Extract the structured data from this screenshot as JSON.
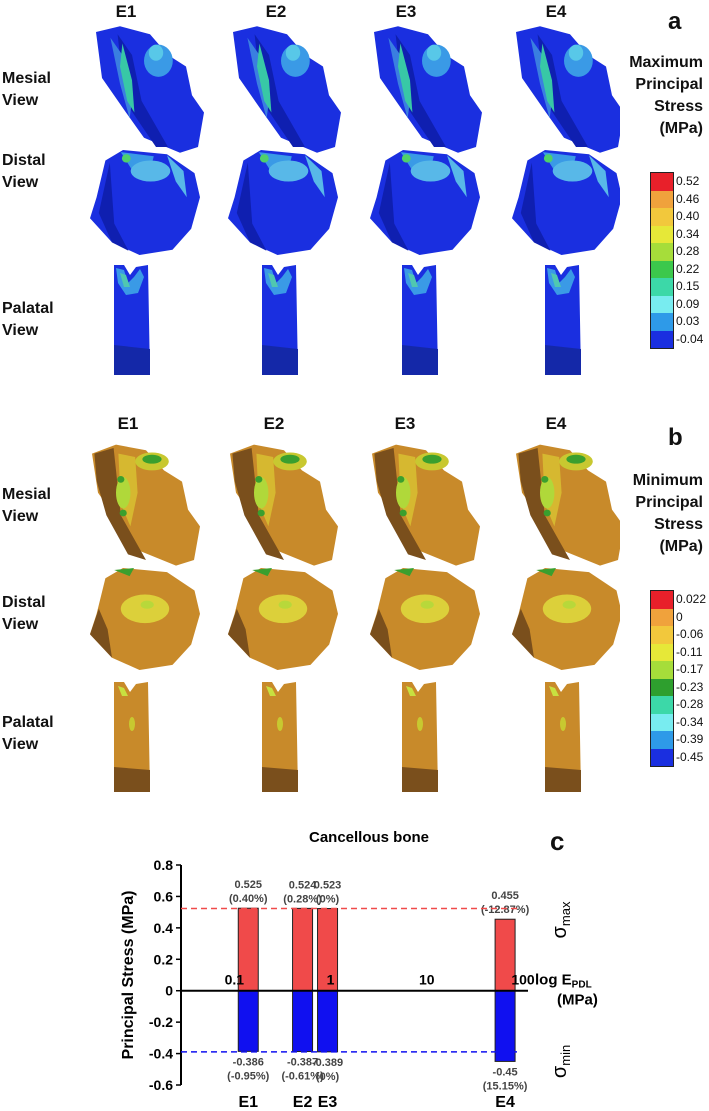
{
  "panel_a": {
    "letter": "a",
    "columns": [
      "E1",
      "E2",
      "E3",
      "E4"
    ],
    "rows": [
      {
        "line1": "Mesial",
        "line2": "View"
      },
      {
        "line1": "Distal",
        "line2": "View"
      },
      {
        "line1": "Palatal",
        "line2": "View"
      }
    ],
    "legend": {
      "title_lines": [
        "Maximum",
        "Principal",
        "Stress",
        "(MPa)"
      ],
      "ticks": [
        "0.52",
        "0.46",
        "0.40",
        "0.34",
        "0.28",
        "0.22",
        "0.15",
        "0.09",
        "0.03",
        "-0.04"
      ],
      "colors": [
        "#e8202a",
        "#f0a23c",
        "#f2c83c",
        "#e6e838",
        "#a6dd3a",
        "#3cc84c",
        "#3cd8a8",
        "#78ecf0",
        "#2e9ae8",
        "#1a2fe0"
      ]
    }
  },
  "panel_b": {
    "letter": "b",
    "columns": [
      "E1",
      "E2",
      "E3",
      "E4"
    ],
    "rows": [
      {
        "line1": "Mesial",
        "line2": "View"
      },
      {
        "line1": "Distal",
        "line2": "View"
      },
      {
        "line1": "Palatal",
        "line2": "View"
      }
    ],
    "legend": {
      "title_lines": [
        "Minimum",
        "Principal",
        "Stress",
        "(MPa)"
      ],
      "ticks": [
        "0.022",
        "0",
        "-0.06",
        "-0.11",
        "-0.17",
        "-0.23",
        "-0.28",
        "-0.34",
        "-0.39",
        "-0.45"
      ],
      "colors": [
        "#e8202a",
        "#f0a23c",
        "#f2c83c",
        "#e6e838",
        "#a6dd3a",
        "#2e9f2e",
        "#3cd8a8",
        "#78ecf0",
        "#2e9ae8",
        "#1a2fe0"
      ]
    }
  },
  "panel_c": {
    "letter": "c",
    "chart_data": {
      "type": "bar",
      "title": "Cancellous bone",
      "ylabel": "Principal Stress (MPa)",
      "ylim": [
        -0.6,
        0.8
      ],
      "yticks": [
        "0.8",
        "0.6",
        "0.4",
        "0.2",
        "0",
        "-0.2",
        "-0.4",
        "-0.6"
      ],
      "xlabel_main": "log E",
      "xlabel_sub": "PDL",
      "xlabel_unit": "(MPa)",
      "xscale": "log",
      "xlim": [
        0.03,
        100
      ],
      "xticks": [
        "0.1",
        "1",
        "10",
        "100"
      ],
      "categories": [
        "E1",
        "E2",
        "E3",
        "E4"
      ],
      "x": [
        0.15,
        0.55,
        1.0,
        70
      ],
      "series": [
        {
          "values": [
            0.525,
            0.524,
            0.523,
            0.455
          ],
          "color": "#f04a4a"
        },
        {
          "values": [
            -0.386,
            -0.387,
            -0.389,
            -0.45
          ],
          "color": "#1010f0"
        }
      ],
      "max_labels": [
        {
          "value": "0.525",
          "pct": "(0.40%)"
        },
        {
          "value": "0.524",
          "pct": "(0.28%)"
        },
        {
          "value": "0.523",
          "pct": "(0%)"
        },
        {
          "value": "0.455",
          "pct": "(-12.87%)"
        }
      ],
      "min_labels": [
        {
          "value": "-0.386",
          "pct": "(-0.95%)"
        },
        {
          "value": "-0.387",
          "pct": "(-0.61%)"
        },
        {
          "value": "-0.389",
          "pct": "(0%)"
        },
        {
          "value": "-0.45",
          "pct": "(15.15%)"
        }
      ],
      "ref_lines": [
        {
          "value": 0.523,
          "color": "#f04a4a"
        },
        {
          "value": -0.389,
          "color": "#1010f0"
        }
      ],
      "right_labels": {
        "max": "σ",
        "max_sub": "max",
        "min": "σ",
        "min_sub": "min"
      }
    }
  }
}
